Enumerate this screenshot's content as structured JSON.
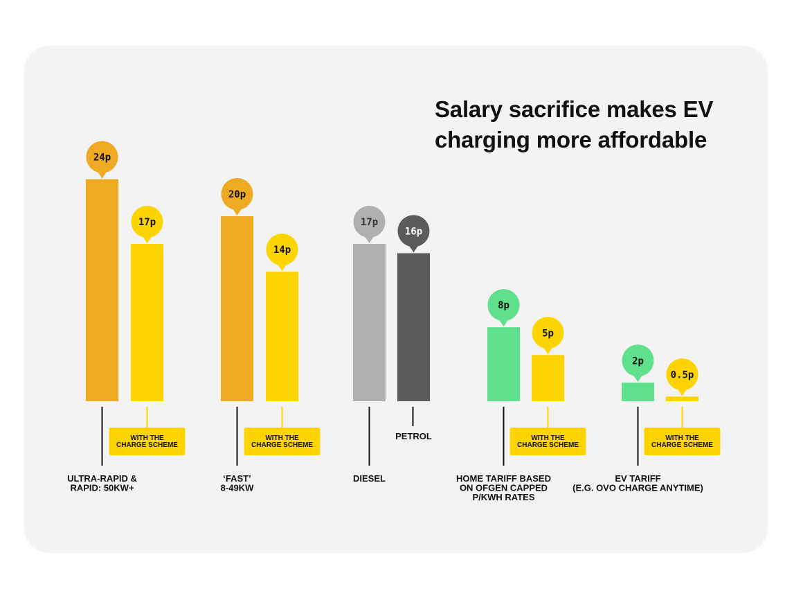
{
  "title": "Salary sacrifice makes EV charging more affordable",
  "colors": {
    "ultra": "#eeaa22",
    "scheme": "#fdd400",
    "diesel": "#b0b0b0",
    "petrol": "#5b5b5b",
    "ev_green": "#5ee08c"
  },
  "chart_data": {
    "type": "bar",
    "title": "Salary sacrifice makes EV charging more affordable",
    "xlabel": "",
    "ylabel": "",
    "unit": "p",
    "ylim": [
      0,
      24
    ],
    "grid": false,
    "groups": [
      {
        "category": [
          "ULTRA-RAPID &",
          "RAPID: 50KW+"
        ],
        "bars": [
          {
            "value": 24,
            "label": "24p",
            "color": "#eeaa22",
            "text_color": "#111111",
            "tag": null
          },
          {
            "value": 17,
            "label": "17p",
            "color": "#fdd400",
            "text_color": "#111111",
            "tag": [
              "WITH THE",
              "CHARGE SCHEME"
            ]
          }
        ]
      },
      {
        "category": [
          "‘FAST’",
          "8-49KW"
        ],
        "bars": [
          {
            "value": 20,
            "label": "20p",
            "color": "#eeaa22",
            "text_color": "#111111",
            "tag": null
          },
          {
            "value": 14,
            "label": "14p",
            "color": "#fdd400",
            "text_color": "#111111",
            "tag": [
              "WITH THE",
              "CHARGE SCHEME"
            ]
          }
        ]
      },
      {
        "category": [
          "DIESEL"
        ],
        "bars": [
          {
            "value": 17,
            "label": "17p",
            "color": "#b0b0b0",
            "text_color": "#333333",
            "tag": null
          },
          {
            "value": 16,
            "label": "16p",
            "color": "#5b5b5b",
            "text_color": "#ffffff",
            "tag": null,
            "name": "PETROL"
          }
        ]
      },
      {
        "category": [
          "HOME TARIFF BASED",
          "ON OFGEN CAPPED",
          "P/KWH RATES"
        ],
        "bars": [
          {
            "value": 8,
            "label": "8p",
            "color": "#5ee08c",
            "text_color": "#111111",
            "tag": null
          },
          {
            "value": 5,
            "label": "5p",
            "color": "#fdd400",
            "text_color": "#111111",
            "tag": [
              "WITH THE",
              "CHARGE SCHEME"
            ]
          }
        ]
      },
      {
        "category": [
          "EV TARIFF",
          "(E.G. OVO CHARGE ANYTIME)"
        ],
        "bars": [
          {
            "value": 2,
            "label": "2p",
            "color": "#5ee08c",
            "text_color": "#111111",
            "tag": null
          },
          {
            "value": 0.5,
            "label": "0.5p",
            "color": "#fdd400",
            "text_color": "#111111",
            "tag": [
              "WITH THE",
              "CHARGE SCHEME"
            ]
          }
        ]
      }
    ]
  }
}
